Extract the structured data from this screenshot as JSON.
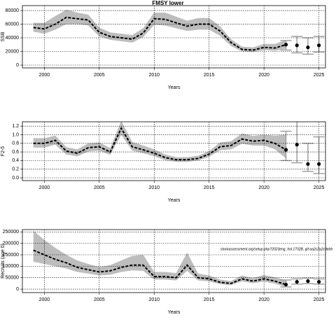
{
  "chart_data": [
    {
      "type": "line",
      "title": "FMSY lower",
      "ylabel": "SSB",
      "xlabel": "Years",
      "x": [
        1999,
        2000,
        2001,
        2002,
        2003,
        2004,
        2005,
        2006,
        2007,
        2008,
        2009,
        2010,
        2011,
        2012,
        2013,
        2014,
        2015,
        2016,
        2017,
        2018,
        2019,
        2020,
        2021,
        2022
      ],
      "values": [
        55000,
        53000,
        60000,
        70000,
        68000,
        66000,
        48000,
        42000,
        40000,
        38000,
        47000,
        68000,
        67000,
        62000,
        57000,
        60000,
        60000,
        50000,
        33000,
        23000,
        22000,
        26000,
        25000,
        30000
      ],
      "lower": [
        49000,
        46000,
        52000,
        60000,
        60000,
        58000,
        42000,
        37000,
        35000,
        33000,
        41000,
        59000,
        58000,
        54000,
        50000,
        52000,
        52000,
        43000,
        28000,
        20000,
        19000,
        22000,
        21000,
        24000
      ],
      "upper": [
        62000,
        62000,
        72000,
        81000,
        77000,
        74000,
        55000,
        48000,
        46000,
        44000,
        54000,
        77000,
        77000,
        71000,
        65000,
        69000,
        69000,
        57000,
        38000,
        27000,
        26000,
        31000,
        31000,
        37000
      ],
      "proj_x": [
        2022,
        2023,
        2024,
        2025
      ],
      "proj_values": [
        30000,
        29000,
        26000,
        29000
      ],
      "proj_lower": [
        22000,
        18000,
        16000,
        19000
      ],
      "proj_upper": [
        36000,
        42000,
        40000,
        42000
      ],
      "xlim": [
        1998,
        2025.6
      ],
      "xticks": [
        2000,
        2005,
        2010,
        2015,
        2020,
        2025
      ],
      "ylim": [
        -4100,
        87200
      ],
      "yticks": [
        0,
        20000,
        40000,
        60000,
        80000
      ],
      "grid": true,
      "line_color": "#000000",
      "band_color": "#bdbdbd",
      "proj_color": "#a0a0a0"
    },
    {
      "type": "line",
      "ylabel": "F2-5",
      "xlabel": "Years",
      "x": [
        1999,
        2000,
        2001,
        2002,
        2003,
        2004,
        2005,
        2006,
        2007,
        2008,
        2009,
        2010,
        2011,
        2012,
        2013,
        2014,
        2015,
        2016,
        2017,
        2018,
        2019,
        2020,
        2021,
        2022
      ],
      "values": [
        0.8,
        0.8,
        0.87,
        0.62,
        0.57,
        0.7,
        0.72,
        0.6,
        1.15,
        0.72,
        0.65,
        0.57,
        0.47,
        0.42,
        0.42,
        0.45,
        0.55,
        0.72,
        0.75,
        0.9,
        0.85,
        0.87,
        0.8,
        0.65
      ],
      "lower": [
        0.7,
        0.7,
        0.77,
        0.54,
        0.5,
        0.61,
        0.63,
        0.53,
        1.0,
        0.63,
        0.57,
        0.5,
        0.41,
        0.37,
        0.37,
        0.4,
        0.49,
        0.64,
        0.66,
        0.79,
        0.75,
        0.75,
        0.66,
        0.45
      ],
      "upper": [
        0.92,
        0.92,
        0.98,
        0.71,
        0.66,
        0.8,
        0.82,
        0.69,
        1.32,
        0.83,
        0.75,
        0.66,
        0.54,
        0.48,
        0.48,
        0.51,
        0.62,
        0.82,
        0.85,
        1.03,
        0.97,
        1.0,
        0.98,
        1.0
      ],
      "proj_x": [
        2022,
        2023,
        2024,
        2025
      ],
      "proj_values": [
        0.65,
        0.77,
        0.32,
        0.32
      ],
      "proj_lower": [
        0.4,
        0.35,
        0.15,
        0.1
      ],
      "proj_upper": [
        1.08,
        1.45,
        0.8,
        0.95
      ],
      "xlim": [
        1998,
        2025.6
      ],
      "xticks": [
        2000,
        2005,
        2010,
        2015,
        2020,
        2025
      ],
      "ylim": [
        -0.065,
        1.3
      ],
      "yticks": [
        {
          "value": 0,
          "label": "0.0"
        },
        0.2,
        0.4,
        0.6,
        0.8,
        {
          "value": 1,
          "label": "1.0"
        },
        1.2
      ],
      "grid": true,
      "line_color": "#000000",
      "band_color": "#bdbdbd",
      "proj_color": "#a0a0a0"
    },
    {
      "type": "line",
      "ylabel": "Recruits (age 0)",
      "xlabel": "Years",
      "annotation": "stockassessment.org/setup.php?2023eng_hol.1702B, git:aa2c2a2c9ebb",
      "x": [
        1999,
        2000,
        2001,
        2002,
        2003,
        2004,
        2005,
        2006,
        2007,
        2008,
        2009,
        2010,
        2011,
        2012,
        2013,
        2014,
        2015,
        2016,
        2017,
        2018,
        2019,
        2020,
        2021,
        2022
      ],
      "values": [
        170000,
        150000,
        130000,
        115000,
        95000,
        85000,
        75000,
        80000,
        95000,
        105000,
        105000,
        55000,
        55000,
        50000,
        105000,
        50000,
        45000,
        30000,
        25000,
        45000,
        35000,
        45000,
        35000,
        20000
      ],
      "lower": [
        120000,
        110000,
        100000,
        90000,
        75000,
        68000,
        60000,
        63000,
        75000,
        82000,
        80000,
        42000,
        42000,
        38000,
        80000,
        38000,
        34000,
        22000,
        18000,
        34000,
        26000,
        33000,
        24000,
        10000
      ],
      "upper": [
        255000,
        215000,
        180000,
        150000,
        125000,
        110000,
        97000,
        105000,
        125000,
        145000,
        150000,
        75000,
        75000,
        70000,
        160000,
        68000,
        60000,
        42000,
        35000,
        60000,
        48000,
        62000,
        52000,
        40000
      ],
      "proj_x": [
        2022,
        2023,
        2024,
        2025
      ],
      "proj_values": [
        20000,
        32000,
        35000,
        32000
      ],
      "proj_lower": [
        10000,
        22000,
        24000,
        22000
      ],
      "proj_upper": [
        40000,
        45000,
        48000,
        45000
      ],
      "xlim": [
        1998,
        2025.6
      ],
      "xticks": [
        2000,
        2005,
        2010,
        2015,
        2020,
        2025
      ],
      "ylim": [
        -15000,
        260000
      ],
      "yticks": [
        0,
        50000,
        100000,
        150000,
        200000,
        250000
      ],
      "grid": true,
      "line_color": "#000000",
      "band_color": "#bdbdbd",
      "proj_color": "#a0a0a0"
    }
  ]
}
